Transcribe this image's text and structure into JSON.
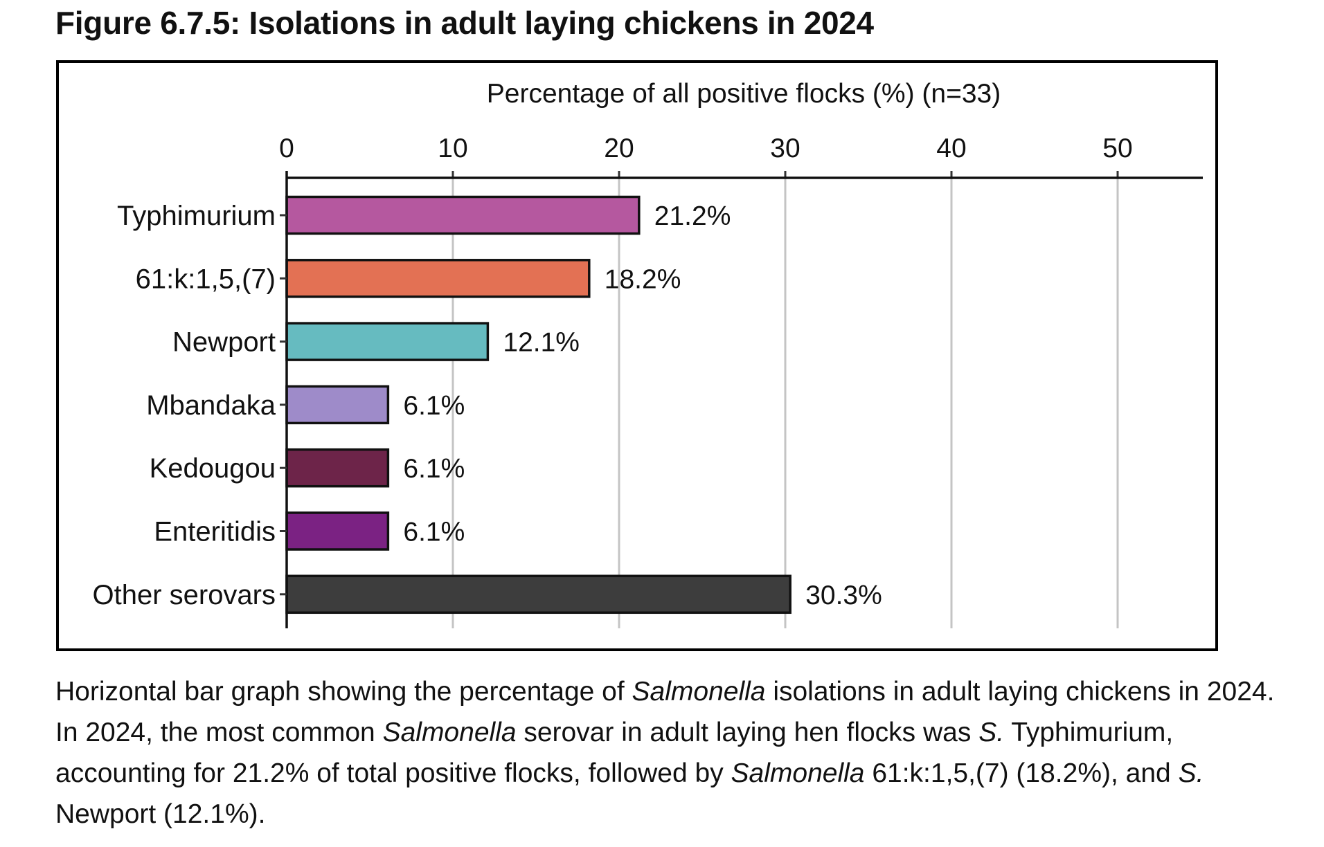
{
  "figure": {
    "title": "Figure 6.7.5: Isolations in adult laying chickens in 2024"
  },
  "caption": {
    "parts": [
      {
        "text": "Horizontal bar graph showing the percentage of ",
        "italic": false
      },
      {
        "text": "Salmonella",
        "italic": true
      },
      {
        "text": " isolations in adult laying chickens in 2024. In 2024, the most common ",
        "italic": false
      },
      {
        "text": "Salmonella",
        "italic": true
      },
      {
        "text": " serovar in adult laying hen flocks was ",
        "italic": false
      },
      {
        "text": "S.",
        "italic": true
      },
      {
        "text": " Typhimurium, accounting for 21.2% of total positive flocks, followed by ",
        "italic": false
      },
      {
        "text": "Salmonella",
        "italic": true
      },
      {
        "text": " 61:k:1,5,(7) (18.2%), and ",
        "italic": false
      },
      {
        "text": "S.",
        "italic": true
      },
      {
        "text": " Newport (12.1%).",
        "italic": false
      }
    ]
  },
  "chart_data": {
    "type": "bar",
    "orientation": "horizontal",
    "title": "Figure 6.7.5: Isolations in adult laying chickens in 2024",
    "xlabel": "Percentage of all positive flocks (%) (n=33)",
    "ylabel": "",
    "xaxis_position": "top",
    "xlim": [
      0,
      55
    ],
    "xticks": [
      0,
      10,
      20,
      30,
      40,
      50
    ],
    "grid": "vertical",
    "categories": [
      "Typhimurium",
      "61:k:1,5,(7)",
      "Newport",
      "Mbandaka",
      "Kedougou",
      "Enteritidis",
      "Other serovars"
    ],
    "values": [
      21.2,
      18.2,
      12.1,
      6.1,
      6.1,
      6.1,
      30.3
    ],
    "data_labels": [
      "21.2%",
      "18.2%",
      "12.1%",
      "6.1%",
      "6.1%",
      "6.1%",
      "30.3%"
    ],
    "colors": [
      "#b5589f",
      "#e37154",
      "#66bbc0",
      "#9e8bc9",
      "#6d2449",
      "#7b2283",
      "#3d3d3d"
    ]
  }
}
